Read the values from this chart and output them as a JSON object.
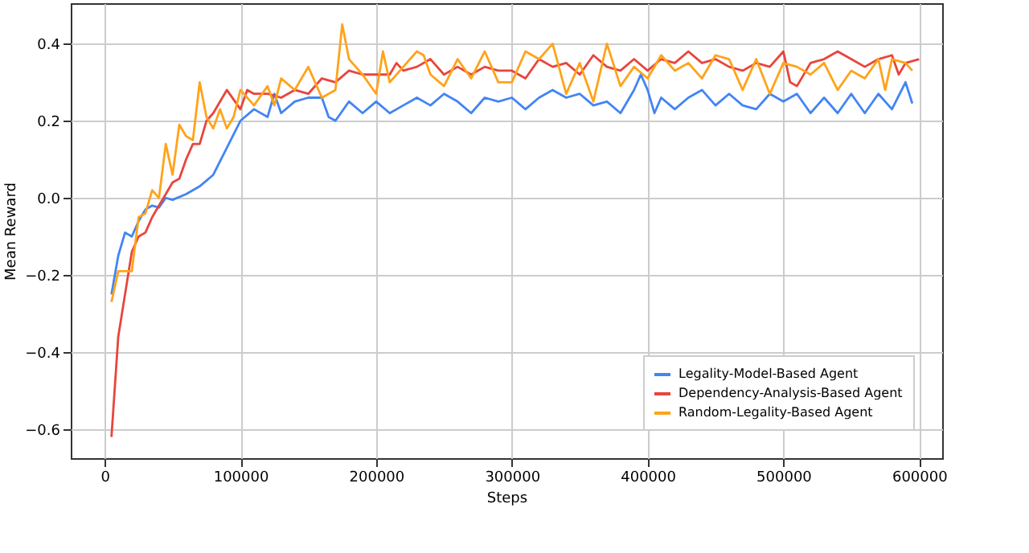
{
  "chart_data": {
    "type": "line",
    "xlabel": "Steps",
    "ylabel": "Mean Reward",
    "xlim": [
      -25000,
      617000
    ],
    "xticks": [
      0,
      100000,
      200000,
      300000,
      400000,
      500000,
      600000
    ],
    "ylim": [
      -0.675,
      0.505
    ],
    "yticks": [
      -0.6,
      -0.4,
      -0.2,
      {
        "value": 0,
        "label": "0.0"
      },
      0.2,
      0.4
    ],
    "grid": true,
    "legend": "bottom right",
    "line_style": "solid",
    "marker": "none",
    "series": [
      {
        "name": "Legality-Model-Based Agent",
        "color": "#4285f4",
        "x": [
          5000,
          10000,
          15000,
          20000,
          25000,
          30000,
          35000,
          40000,
          45000,
          50000,
          60000,
          70000,
          80000,
          90000,
          100000,
          110000,
          120000,
          125000,
          130000,
          140000,
          150000,
          160000,
          165000,
          170000,
          180000,
          190000,
          200000,
          210000,
          220000,
          230000,
          240000,
          250000,
          260000,
          270000,
          280000,
          290000,
          300000,
          310000,
          320000,
          330000,
          340000,
          350000,
          360000,
          370000,
          380000,
          390000,
          395000,
          400000,
          405000,
          410000,
          420000,
          430000,
          440000,
          450000,
          460000,
          470000,
          480000,
          490000,
          500000,
          510000,
          520000,
          530000,
          540000,
          550000,
          560000,
          570000,
          580000,
          590000,
          595000
        ],
        "values": [
          -0.25,
          -0.15,
          -0.09,
          -0.1,
          -0.06,
          -0.03,
          -0.02,
          -0.025,
          0.0,
          -0.005,
          0.01,
          0.03,
          0.06,
          0.13,
          0.2,
          0.23,
          0.21,
          0.27,
          0.22,
          0.25,
          0.26,
          0.26,
          0.21,
          0.2,
          0.25,
          0.22,
          0.25,
          0.22,
          0.24,
          0.26,
          0.24,
          0.27,
          0.25,
          0.22,
          0.26,
          0.25,
          0.26,
          0.23,
          0.26,
          0.28,
          0.26,
          0.27,
          0.24,
          0.25,
          0.22,
          0.28,
          0.32,
          0.28,
          0.22,
          0.26,
          0.23,
          0.26,
          0.28,
          0.24,
          0.27,
          0.24,
          0.23,
          0.27,
          0.25,
          0.27,
          0.22,
          0.26,
          0.22,
          0.27,
          0.22,
          0.27,
          0.23,
          0.3,
          0.245
        ]
      },
      {
        "name": "Dependency-Analysis-Based Agent",
        "color": "#e8453c",
        "x": [
          5000,
          10000,
          15000,
          20000,
          25000,
          30000,
          35000,
          40000,
          45000,
          50000,
          55000,
          60000,
          65000,
          70000,
          75000,
          80000,
          90000,
          100000,
          105000,
          110000,
          120000,
          130000,
          140000,
          150000,
          160000,
          170000,
          180000,
          190000,
          200000,
          210000,
          215000,
          220000,
          230000,
          240000,
          250000,
          260000,
          270000,
          280000,
          290000,
          300000,
          310000,
          320000,
          330000,
          340000,
          350000,
          360000,
          370000,
          380000,
          390000,
          400000,
          410000,
          420000,
          430000,
          440000,
          450000,
          460000,
          470000,
          480000,
          490000,
          500000,
          505000,
          510000,
          520000,
          530000,
          540000,
          550000,
          560000,
          570000,
          580000,
          585000,
          590000,
          600000
        ],
        "values": [
          -0.62,
          -0.36,
          -0.25,
          -0.14,
          -0.1,
          -0.09,
          -0.05,
          -0.02,
          0.01,
          0.04,
          0.05,
          0.1,
          0.14,
          0.14,
          0.2,
          0.22,
          0.28,
          0.23,
          0.28,
          0.27,
          0.27,
          0.26,
          0.28,
          0.27,
          0.31,
          0.3,
          0.33,
          0.32,
          0.32,
          0.32,
          0.35,
          0.33,
          0.34,
          0.36,
          0.32,
          0.34,
          0.32,
          0.34,
          0.33,
          0.33,
          0.31,
          0.36,
          0.34,
          0.35,
          0.32,
          0.37,
          0.34,
          0.33,
          0.36,
          0.33,
          0.36,
          0.35,
          0.38,
          0.35,
          0.36,
          0.34,
          0.33,
          0.35,
          0.34,
          0.38,
          0.3,
          0.29,
          0.35,
          0.36,
          0.38,
          0.36,
          0.34,
          0.36,
          0.37,
          0.32,
          0.35,
          0.36
        ]
      },
      {
        "name": "Random-Legality-Based Agent",
        "color": "#ffa31a",
        "x": [
          5000,
          10000,
          20000,
          25000,
          30000,
          35000,
          40000,
          45000,
          50000,
          55000,
          60000,
          65000,
          70000,
          75000,
          80000,
          85000,
          90000,
          95000,
          100000,
          110000,
          120000,
          125000,
          130000,
          140000,
          150000,
          160000,
          170000,
          175000,
          180000,
          190000,
          200000,
          205000,
          210000,
          220000,
          230000,
          235000,
          240000,
          250000,
          260000,
          270000,
          280000,
          290000,
          300000,
          310000,
          320000,
          330000,
          340000,
          350000,
          360000,
          370000,
          380000,
          390000,
          400000,
          410000,
          420000,
          430000,
          440000,
          450000,
          460000,
          470000,
          480000,
          490000,
          500000,
          510000,
          520000,
          530000,
          540000,
          550000,
          560000,
          570000,
          575000,
          580000,
          590000,
          595000
        ],
        "values": [
          -0.27,
          -0.19,
          -0.19,
          -0.05,
          -0.04,
          0.02,
          0.0,
          0.14,
          0.06,
          0.19,
          0.16,
          0.15,
          0.3,
          0.21,
          0.18,
          0.23,
          0.18,
          0.21,
          0.28,
          0.24,
          0.29,
          0.24,
          0.31,
          0.28,
          0.34,
          0.26,
          0.28,
          0.45,
          0.36,
          0.32,
          0.27,
          0.38,
          0.3,
          0.34,
          0.38,
          0.37,
          0.32,
          0.29,
          0.36,
          0.31,
          0.38,
          0.3,
          0.3,
          0.38,
          0.36,
          0.4,
          0.27,
          0.35,
          0.25,
          0.4,
          0.29,
          0.34,
          0.31,
          0.37,
          0.33,
          0.35,
          0.31,
          0.37,
          0.36,
          0.28,
          0.36,
          0.27,
          0.35,
          0.34,
          0.32,
          0.35,
          0.28,
          0.33,
          0.31,
          0.36,
          0.28,
          0.36,
          0.35,
          0.33
        ]
      }
    ]
  }
}
